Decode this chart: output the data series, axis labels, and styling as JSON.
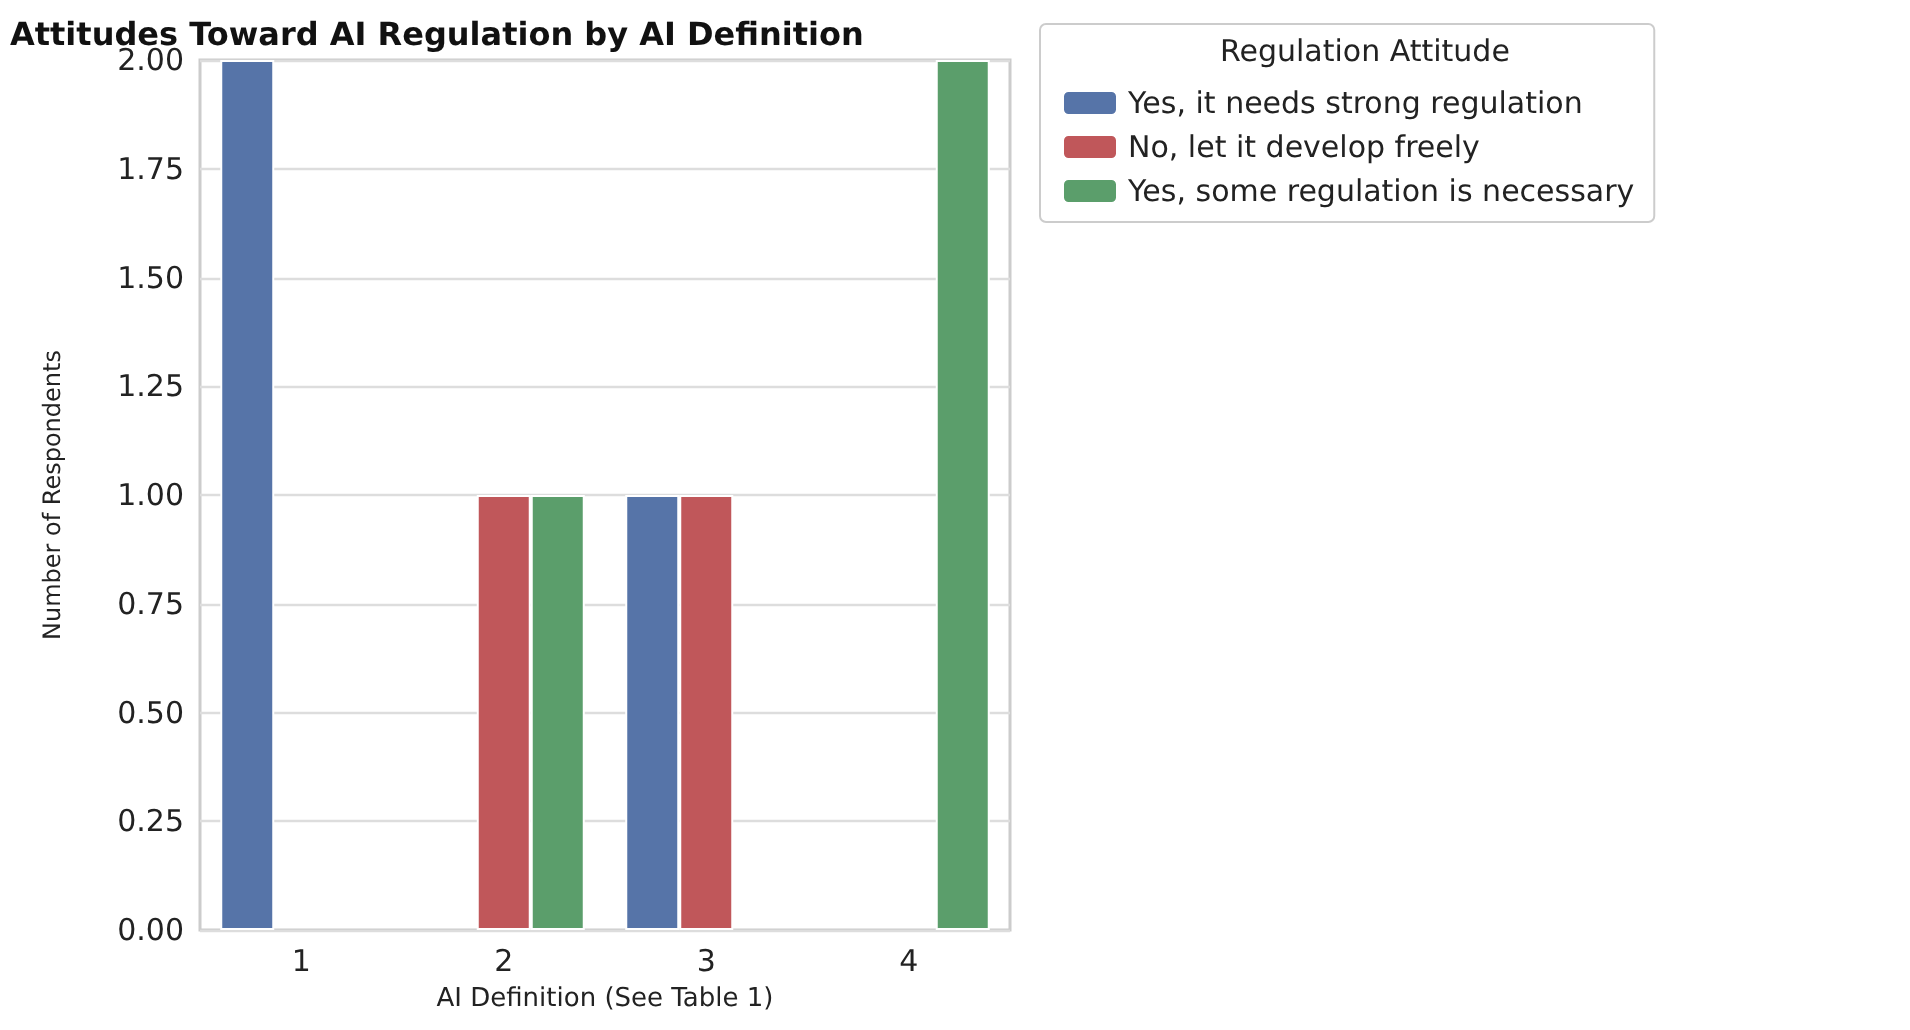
{
  "chart_data": {
    "type": "bar",
    "title": "Attitudes Toward AI Regulation by AI Definition",
    "xlabel": "AI Definition (See Table 1)",
    "ylabel": "Number of Respondents",
    "legend_title": "Regulation Attitude",
    "categories": [
      "1",
      "2",
      "3",
      "4"
    ],
    "series": [
      {
        "name": "Yes, it needs strong regulation",
        "color": "#5674a8",
        "values": [
          2,
          null,
          1,
          null
        ]
      },
      {
        "name": "No, let it develop freely",
        "color": "#c0575a",
        "values": [
          null,
          1,
          1,
          null
        ]
      },
      {
        "name": "Yes, some regulation is necessary",
        "color": "#5b9e6b",
        "values": [
          null,
          1,
          null,
          2
        ]
      }
    ],
    "ylim": [
      0,
      2
    ],
    "yticks": [
      {
        "value": 0,
        "label": "0.00"
      },
      {
        "value": 0.25,
        "label": "0.25"
      },
      {
        "value": 0.5,
        "label": "0.50"
      },
      {
        "value": 0.75,
        "label": "0.75"
      },
      {
        "value": 1,
        "label": "1.00"
      },
      {
        "value": 1.25,
        "label": "1.25"
      },
      {
        "value": 1.5,
        "label": "1.50"
      },
      {
        "value": 1.75,
        "label": "1.75"
      },
      {
        "value": 2,
        "label": "2.00"
      }
    ],
    "grid": "y",
    "legend": "right"
  }
}
